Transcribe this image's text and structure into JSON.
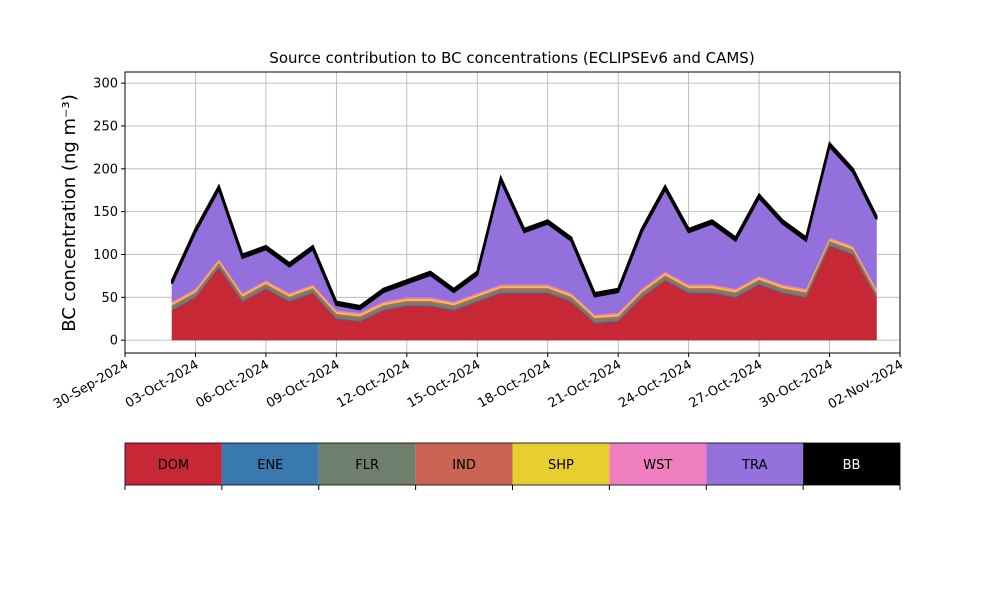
{
  "chart_data": {
    "type": "stacked_area",
    "title": "Source contribution to BC concentrations (ECLIPSEv6 and CAMS)",
    "y_label": "BC concentration (ng m⁻³)",
    "x": [
      "2024-10-02",
      "2024-10-03",
      "2024-10-04",
      "2024-10-05",
      "2024-10-06",
      "2024-10-07",
      "2024-10-08",
      "2024-10-09",
      "2024-10-10",
      "2024-10-11",
      "2024-10-12",
      "2024-10-13",
      "2024-10-14",
      "2024-10-15",
      "2024-10-16",
      "2024-10-17",
      "2024-10-18",
      "2024-10-19",
      "2024-10-20",
      "2024-10-21",
      "2024-10-22",
      "2024-10-23",
      "2024-10-24",
      "2024-10-25",
      "2024-10-26",
      "2024-10-27",
      "2024-10-28",
      "2024-10-29",
      "2024-10-30",
      "2024-10-31",
      "2024-11-01"
    ],
    "series": [
      {
        "name": "DOM",
        "color": "#c62836",
        "values": [
          35,
          50,
          85,
          45,
          60,
          45,
          55,
          25,
          22,
          35,
          40,
          40,
          35,
          45,
          55,
          55,
          55,
          45,
          20,
          22,
          50,
          70,
          55,
          55,
          50,
          65,
          55,
          50,
          110,
          100,
          50
        ]
      },
      {
        "name": "ENE",
        "color": "#3a78b0",
        "values": [
          1,
          1,
          1,
          1,
          1,
          1,
          1,
          1,
          1,
          1,
          1,
          1,
          1,
          1,
          1,
          1,
          1,
          1,
          1,
          1,
          1,
          1,
          1,
          1,
          1,
          1,
          1,
          1,
          1,
          1,
          1
        ]
      },
      {
        "name": "FLR",
        "color": "#6e7f6e",
        "values": [
          3,
          3,
          3,
          3,
          3,
          3,
          3,
          3,
          3,
          3,
          3,
          3,
          3,
          3,
          3,
          3,
          3,
          3,
          3,
          3,
          3,
          3,
          3,
          3,
          3,
          3,
          3,
          3,
          3,
          3,
          3
        ]
      },
      {
        "name": "IND",
        "color": "#c96455",
        "values": [
          2,
          2,
          2,
          2,
          2,
          2,
          2,
          2,
          2,
          2,
          2,
          2,
          2,
          2,
          2,
          2,
          2,
          2,
          2,
          2,
          2,
          2,
          2,
          2,
          2,
          2,
          2,
          2,
          2,
          2,
          2
        ]
      },
      {
        "name": "SHP",
        "color": "#e8cf30",
        "values": [
          2,
          2,
          2,
          2,
          2,
          2,
          2,
          2,
          2,
          2,
          2,
          2,
          2,
          2,
          2,
          2,
          2,
          2,
          2,
          2,
          2,
          2,
          2,
          2,
          2,
          2,
          2,
          2,
          2,
          2,
          2
        ]
      },
      {
        "name": "WST",
        "color": "#f07fbf",
        "values": [
          2,
          2,
          2,
          2,
          2,
          2,
          2,
          2,
          2,
          2,
          2,
          2,
          2,
          2,
          2,
          2,
          2,
          2,
          2,
          2,
          2,
          2,
          2,
          2,
          2,
          2,
          2,
          2,
          2,
          2,
          2
        ]
      },
      {
        "name": "TRA",
        "color": "#9370db",
        "values": [
          21,
          66,
          81,
          41,
          36,
          31,
          41,
          6,
          4,
          11,
          16,
          26,
          11,
          21,
          121,
          61,
          71,
          61,
          21,
          24,
          66,
          96,
          61,
          71,
          56,
          91,
          71,
          56,
          106,
          86,
          81
        ]
      },
      {
        "name": "BB",
        "color": "#000000",
        "values": [
          4,
          4,
          4,
          4,
          4,
          4,
          4,
          4,
          4,
          4,
          4,
          4,
          4,
          4,
          4,
          4,
          4,
          4,
          4,
          4,
          4,
          4,
          4,
          4,
          4,
          4,
          4,
          4,
          4,
          4,
          4
        ]
      }
    ],
    "xlim": [
      "2024-09-30",
      "2024-11-02"
    ],
    "xticks": [
      {
        "value": "2024-09-30",
        "label": "30-Sep-2024"
      },
      {
        "value": "2024-10-03",
        "label": "03-Oct-2024"
      },
      {
        "value": "2024-10-06",
        "label": "06-Oct-2024"
      },
      {
        "value": "2024-10-09",
        "label": "09-Oct-2024"
      },
      {
        "value": "2024-10-12",
        "label": "12-Oct-2024"
      },
      {
        "value": "2024-10-15",
        "label": "15-Oct-2024"
      },
      {
        "value": "2024-10-18",
        "label": "18-Oct-2024"
      },
      {
        "value": "2024-10-21",
        "label": "21-Oct-2024"
      },
      {
        "value": "2024-10-24",
        "label": "24-Oct-2024"
      },
      {
        "value": "2024-10-27",
        "label": "27-Oct-2024"
      },
      {
        "value": "2024-10-30",
        "label": "30-Oct-2024"
      },
      {
        "value": "2024-11-02",
        "label": "02-Nov-2024"
      }
    ],
    "ylim": [
      -15,
      313
    ],
    "yticks": [
      0,
      50,
      100,
      150,
      200,
      250,
      300
    ],
    "grid": true
  }
}
